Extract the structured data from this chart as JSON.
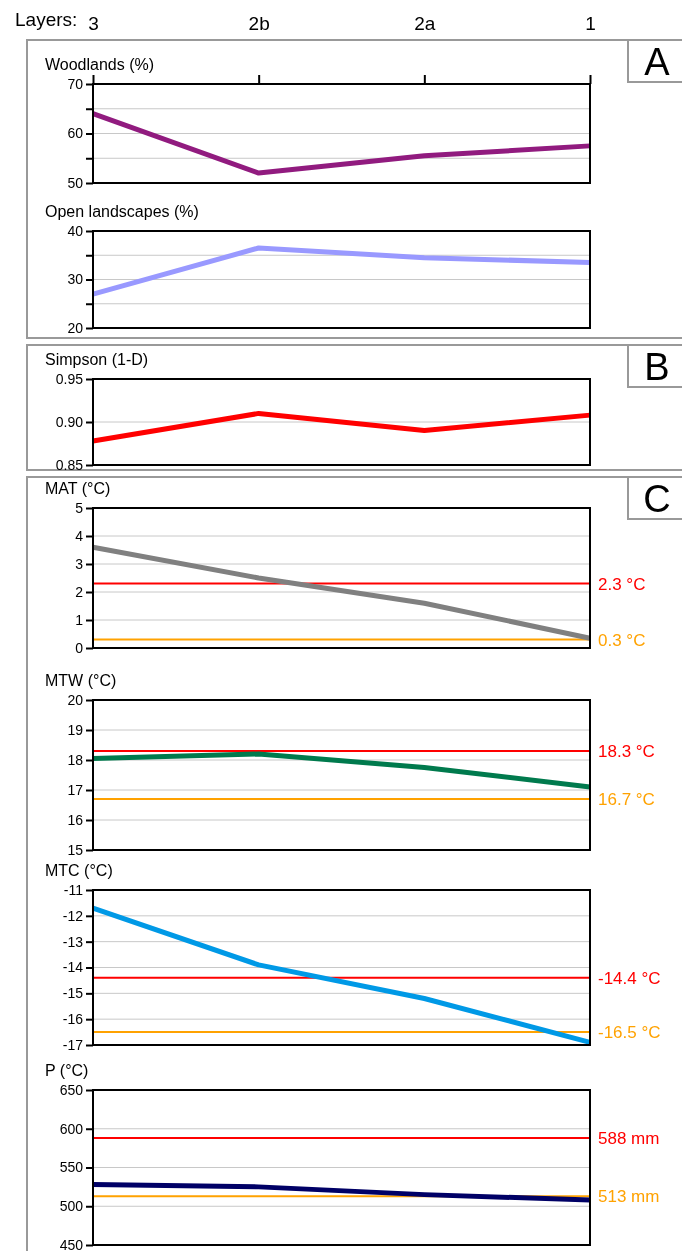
{
  "chart_data": [
    {
      "type": "line",
      "title": "Woodlands (%)",
      "categories": [
        "3",
        "2b",
        "2a",
        "1"
      ],
      "annotations": [
        "Layers:",
        "A"
      ],
      "series": [
        {
          "color": "#911b7f",
          "values": [
            64,
            52,
            55.5,
            57.5
          ]
        }
      ],
      "ylim": [
        50,
        70
      ],
      "yticks": [
        50,
        {
          "value": 55,
          "label": null
        },
        60,
        {
          "value": 65,
          "label": null
        },
        70
      ],
      "grid": "y"
    },
    {
      "type": "line",
      "title": "Open landscapes (%)",
      "categories": [
        null,
        null,
        null,
        null
      ],
      "tick_labels": "y",
      "series": [
        {
          "color": "#9999ff",
          "values": [
            27,
            36.5,
            34.5,
            33.5
          ]
        }
      ],
      "ylim": [
        20,
        40
      ],
      "yticks": [
        20,
        {
          "value": 25,
          "label": null
        },
        30,
        {
          "value": 35,
          "label": null
        },
        40
      ],
      "grid": "y"
    },
    {
      "type": "line",
      "title": "Simpson (1-D)",
      "categories": [
        null,
        null,
        null,
        null
      ],
      "tick_labels": "y",
      "annotations": [
        "B"
      ],
      "series": [
        {
          "color": "#ff0000",
          "values": [
            0.878,
            0.91,
            0.89,
            0.908
          ]
        }
      ],
      "ylim": [
        0.85,
        0.95
      ],
      "yticks": [
        {
          "value": 0.85,
          "label": "0.85"
        },
        {
          "value": 0.9,
          "label": "0.90"
        },
        {
          "value": 0.95,
          "label": "0.95"
        }
      ],
      "grid": "y"
    },
    {
      "type": "line",
      "title": "MAT (°C)",
      "categories": [
        null,
        null,
        null,
        null
      ],
      "tick_labels": "y",
      "annotations": [
        "C"
      ],
      "series": [
        {
          "color": "#808080",
          "values": [
            3.6,
            2.5,
            1.6,
            0.35
          ]
        }
      ],
      "ylim": [
        0,
        5
      ],
      "yticks": [
        0,
        1,
        2,
        3,
        4,
        5
      ],
      "grid": "y",
      "ref_lines": [
        {
          "axis": "y",
          "value": 2.3,
          "label": "2.3 °C",
          "color": "#ff0000"
        },
        {
          "axis": "y",
          "value": 0.3,
          "label": "0.3 °C",
          "color": "#ffa200"
        }
      ]
    },
    {
      "type": "line",
      "title": "MTW (°C)",
      "categories": [
        null,
        null,
        null,
        null
      ],
      "tick_labels": "y",
      "series": [
        {
          "color": "#007a4d",
          "values": [
            18.05,
            18.2,
            17.75,
            17.1
          ]
        }
      ],
      "ylim": [
        15,
        20
      ],
      "yticks": [
        15,
        16,
        17,
        18,
        19,
        20
      ],
      "grid": "y",
      "ref_lines": [
        {
          "axis": "y",
          "value": 18.3,
          "label": "18.3 °C",
          "color": "#ff0000"
        },
        {
          "axis": "y",
          "value": 16.7,
          "label": "16.7 °C",
          "color": "#ffa200"
        }
      ]
    },
    {
      "type": "line",
      "title": "MTC (°C)",
      "categories": [
        null,
        null,
        null,
        null
      ],
      "tick_labels": "y",
      "series": [
        {
          "color": "#0099e6",
          "values": [
            -11.7,
            -13.9,
            -15.2,
            -16.9
          ]
        }
      ],
      "ylim": [
        -17,
        -11
      ],
      "yticks": [
        -17,
        -16,
        -15,
        -14,
        -13,
        -12,
        -11
      ],
      "grid": "y",
      "ref_lines": [
        {
          "axis": "y",
          "value": -14.4,
          "label": "-14.4 °C",
          "color": "#ff0000"
        },
        {
          "axis": "y",
          "value": -16.5,
          "label": "-16.5 °C",
          "color": "#ffa200"
        }
      ]
    },
    {
      "type": "line",
      "title": "P (°C)",
      "categories": [
        null,
        null,
        null,
        null
      ],
      "tick_labels": "y",
      "series": [
        {
          "color": "#000066",
          "values": [
            528,
            525,
            515,
            508
          ]
        }
      ],
      "ylim": [
        450,
        650
      ],
      "yticks": [
        450,
        500,
        550,
        600,
        650
      ],
      "grid": "y",
      "ref_lines": [
        {
          "axis": "y",
          "value": 588,
          "label": "588 mm",
          "color": "#ff0000"
        },
        {
          "axis": "y",
          "value": 513,
          "label": "513 mm",
          "color": "#ffa200"
        }
      ]
    }
  ]
}
